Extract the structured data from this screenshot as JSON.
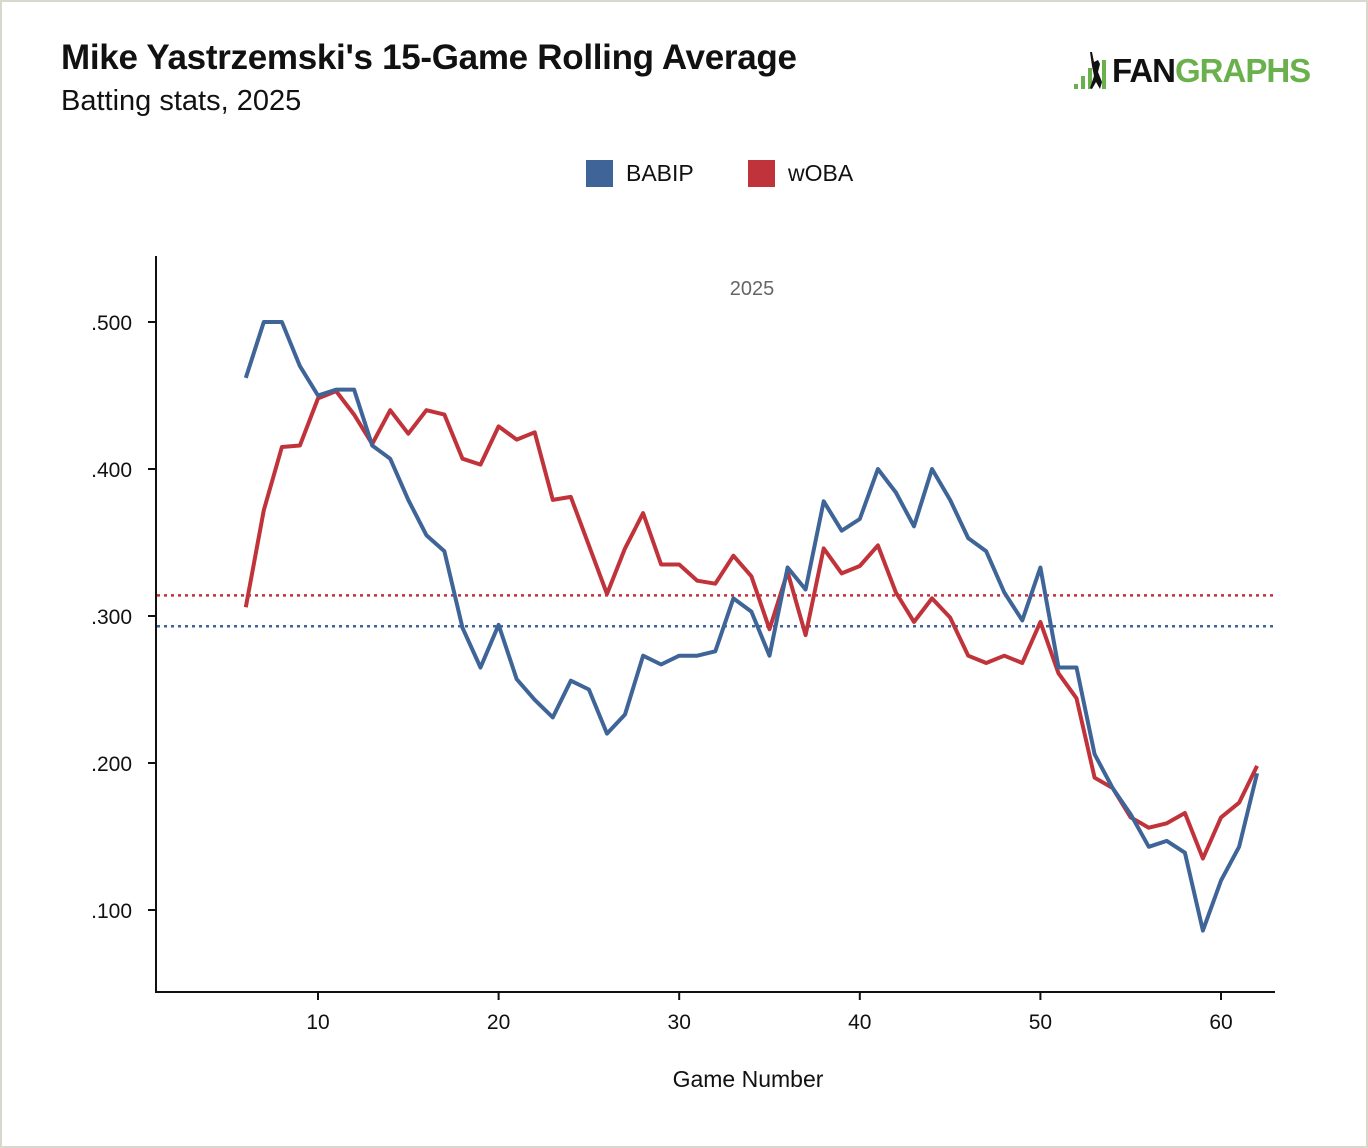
{
  "title": "Mike Yastrzemski's 15-Game Rolling Average",
  "subtitle": "Batting stats, 2025",
  "logo": {
    "text_fan": "FAN",
    "text_graphs": "GRAPHS",
    "color": "#6ab04c"
  },
  "chart_data": {
    "type": "line",
    "xlabel": "Game Number",
    "ylabel": "",
    "annotation": "2025",
    "xlim": [
      1,
      63
    ],
    "ylim": [
      0.045,
      0.545
    ],
    "xticks": [
      10,
      20,
      30,
      40,
      50,
      60
    ],
    "yticks": [
      0.1,
      0.2,
      0.3,
      0.4,
      0.5
    ],
    "ytick_labels": [
      ".100",
      ".200",
      ".300",
      ".400",
      ".500"
    ],
    "grid": false,
    "legend": "top-center",
    "x": [
      6,
      7,
      8,
      9,
      10,
      11,
      12,
      13,
      14,
      15,
      16,
      17,
      18,
      19,
      20,
      21,
      22,
      23,
      24,
      25,
      26,
      27,
      28,
      29,
      30,
      31,
      32,
      33,
      34,
      35,
      36,
      37,
      38,
      39,
      40,
      41,
      42,
      43,
      44,
      45,
      46,
      47,
      48,
      49,
      50,
      51,
      52,
      53,
      54,
      55,
      56,
      57,
      58,
      59,
      60,
      61,
      62
    ],
    "series": [
      {
        "name": "BABIP",
        "color": "#3f6598",
        "average": 0.293,
        "values": [
          0.462,
          0.5,
          0.5,
          0.47,
          0.45,
          0.454,
          0.454,
          0.416,
          0.407,
          0.379,
          0.355,
          0.344,
          0.292,
          0.265,
          0.294,
          0.257,
          0.243,
          0.231,
          0.256,
          0.25,
          0.22,
          0.233,
          0.273,
          0.267,
          0.273,
          0.273,
          0.276,
          0.312,
          0.303,
          0.273,
          0.333,
          0.318,
          0.378,
          0.358,
          0.366,
          0.4,
          0.384,
          0.361,
          0.4,
          0.379,
          0.353,
          0.344,
          0.316,
          0.297,
          0.333,
          0.265,
          0.265,
          0.206,
          0.183,
          0.165,
          0.143,
          0.147,
          0.139,
          0.086,
          0.12,
          0.143,
          0.193
        ]
      },
      {
        "name": "wOBA",
        "color": "#c1333a",
        "average": 0.314,
        "values": [
          0.306,
          0.372,
          0.415,
          0.416,
          0.448,
          0.453,
          0.437,
          0.417,
          0.44,
          0.424,
          0.44,
          0.437,
          0.407,
          0.403,
          0.429,
          0.42,
          0.425,
          0.379,
          0.381,
          0.348,
          0.315,
          0.346,
          0.37,
          0.335,
          0.335,
          0.324,
          0.322,
          0.341,
          0.327,
          0.291,
          0.33,
          0.287,
          0.346,
          0.329,
          0.334,
          0.348,
          0.316,
          0.296,
          0.312,
          0.299,
          0.273,
          0.268,
          0.273,
          0.268,
          0.296,
          0.261,
          0.244,
          0.19,
          0.183,
          0.163,
          0.156,
          0.159,
          0.166,
          0.135,
          0.163,
          0.173,
          0.198
        ]
      }
    ]
  }
}
